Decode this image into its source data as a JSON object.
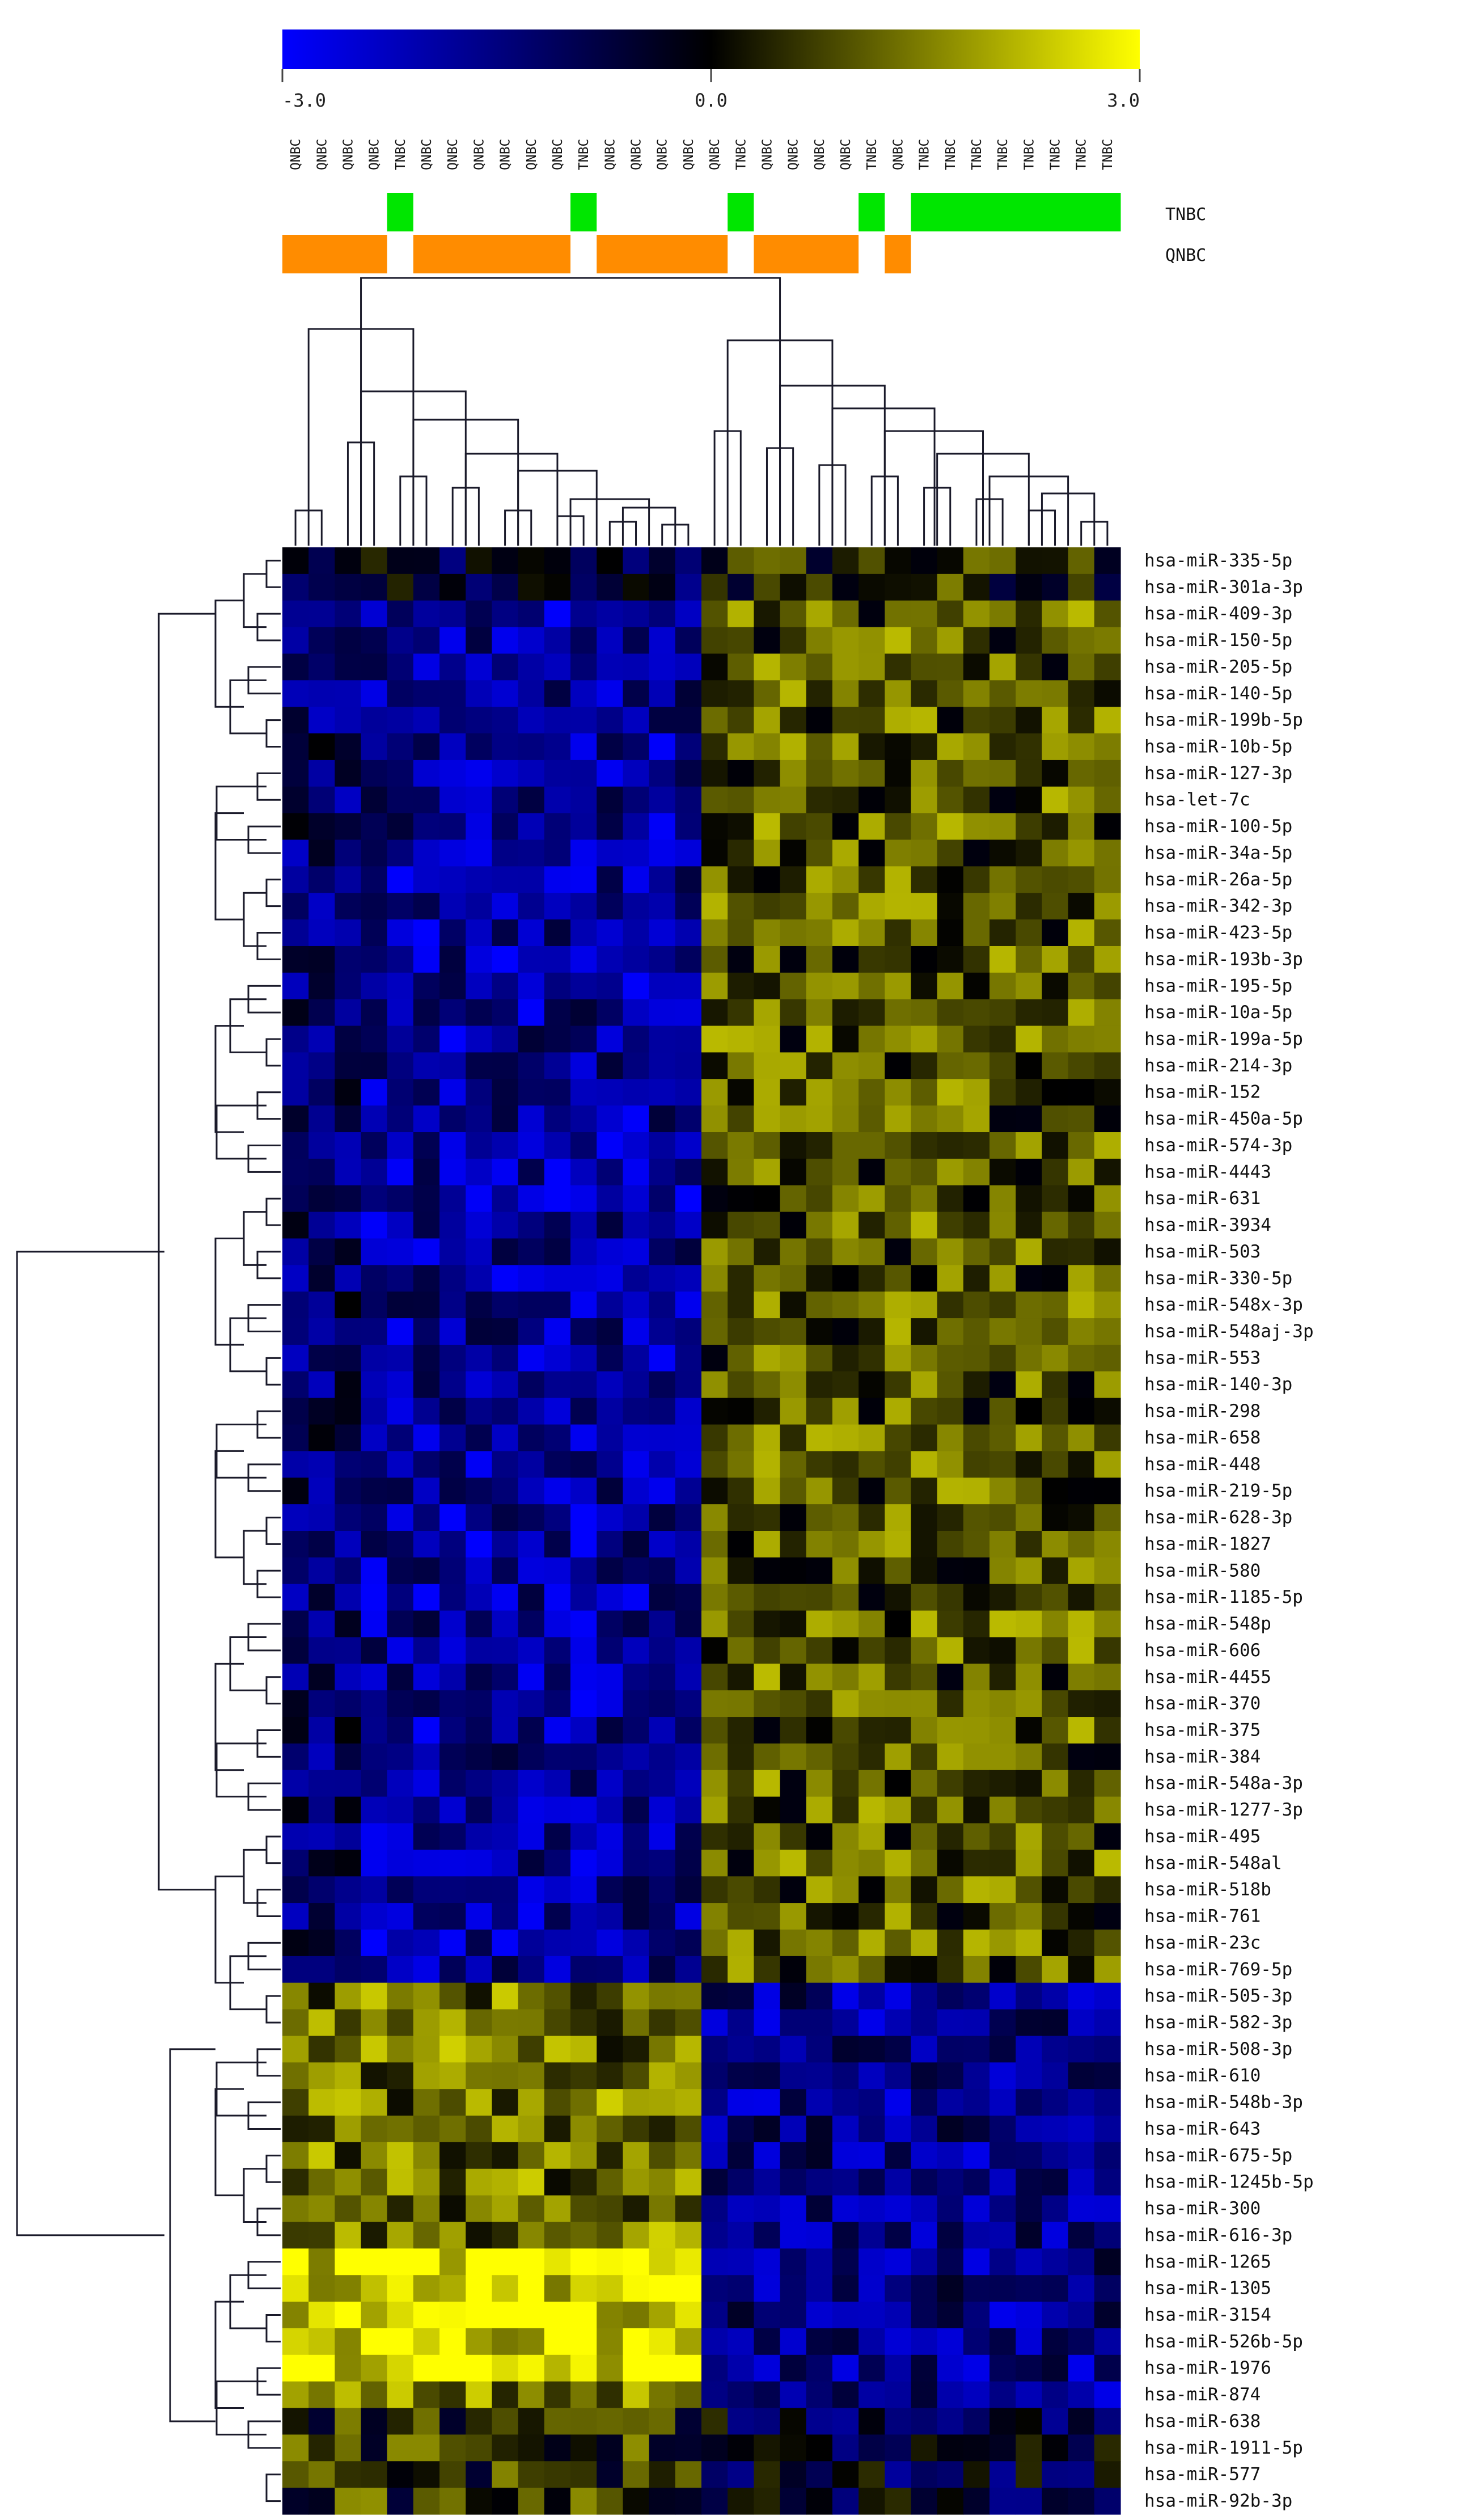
{
  "chart_data": {
    "type": "heatmap",
    "title": "",
    "color_scale": {
      "min": -3.0,
      "mid": 0.0,
      "max": 3.0,
      "min_color": "#0000ff",
      "mid_color": "#000000",
      "max_color": "#ffff00",
      "tick_labels": [
        "-3.0",
        "0.0",
        "3.0"
      ]
    },
    "samples": [
      "QNBC",
      "QNBC",
      "QNBC",
      "QNBC",
      "TNBC",
      "QNBC",
      "QNBC",
      "QNBC",
      "QNBC",
      "QNBC",
      "QNBC",
      "TNBC",
      "QNBC",
      "QNBC",
      "QNBC",
      "QNBC",
      "QNBC",
      "TNBC",
      "QNBC",
      "QNBC",
      "QNBC",
      "QNBC",
      "TNBC",
      "QNBC",
      "TNBC",
      "TNBC",
      "TNBC",
      "TNBC",
      "TNBC",
      "TNBC",
      "TNBC",
      "TNBC"
    ],
    "group_legend": [
      {
        "label": "TNBC",
        "color": "#00e600"
      },
      {
        "label": "QNBC",
        "color": "#ff8c00"
      }
    ],
    "genes": [
      "hsa-miR-335-5p",
      "hsa-miR-301a-3p",
      "hsa-miR-409-3p",
      "hsa-miR-150-5p",
      "hsa-miR-205-5p",
      "hsa-miR-140-5p",
      "hsa-miR-199b-5p",
      "hsa-miR-10b-5p",
      "hsa-miR-127-3p",
      "hsa-let-7c",
      "hsa-miR-100-5p",
      "hsa-miR-34a-5p",
      "hsa-miR-26a-5p",
      "hsa-miR-342-3p",
      "hsa-miR-423-5p",
      "hsa-miR-193b-3p",
      "hsa-miR-195-5p",
      "hsa-miR-10a-5p",
      "hsa-miR-199a-5p",
      "hsa-miR-214-3p",
      "hsa-miR-152",
      "hsa-miR-450a-5p",
      "hsa-miR-574-3p",
      "hsa-miR-4443",
      "hsa-miR-631",
      "hsa-miR-3934",
      "hsa-miR-503",
      "hsa-miR-330-5p",
      "hsa-miR-548x-3p",
      "hsa-miR-548aj-3p",
      "hsa-miR-553",
      "hsa-miR-140-3p",
      "hsa-miR-298",
      "hsa-miR-658",
      "hsa-miR-448",
      "hsa-miR-219-5p",
      "hsa-miR-628-3p",
      "hsa-miR-1827",
      "hsa-miR-580",
      "hsa-miR-1185-5p",
      "hsa-miR-548p",
      "hsa-miR-606",
      "hsa-miR-4455",
      "hsa-miR-370",
      "hsa-miR-375",
      "hsa-miR-384",
      "hsa-miR-548a-3p",
      "hsa-miR-1277-3p",
      "hsa-miR-495",
      "hsa-miR-548al",
      "hsa-miR-518b",
      "hsa-miR-761",
      "hsa-miR-23c",
      "hsa-miR-769-5p",
      "hsa-miR-505-3p",
      "hsa-miR-582-3p",
      "hsa-miR-508-3p",
      "hsa-miR-610",
      "hsa-miR-548b-3p",
      "hsa-miR-643",
      "hsa-miR-675-5p",
      "hsa-miR-1245b-5p",
      "hsa-miR-300",
      "hsa-miR-616-3p",
      "hsa-miR-1265",
      "hsa-miR-1305",
      "hsa-miR-3154",
      "hsa-miR-526b-5p",
      "hsa-miR-1976",
      "hsa-miR-874",
      "hsa-miR-638",
      "hsa-miR-1911-5p",
      "hsa-miR-577",
      "hsa-miR-92b-3p"
    ],
    "xlabel": "",
    "ylabel": "",
    "legend": "right"
  }
}
